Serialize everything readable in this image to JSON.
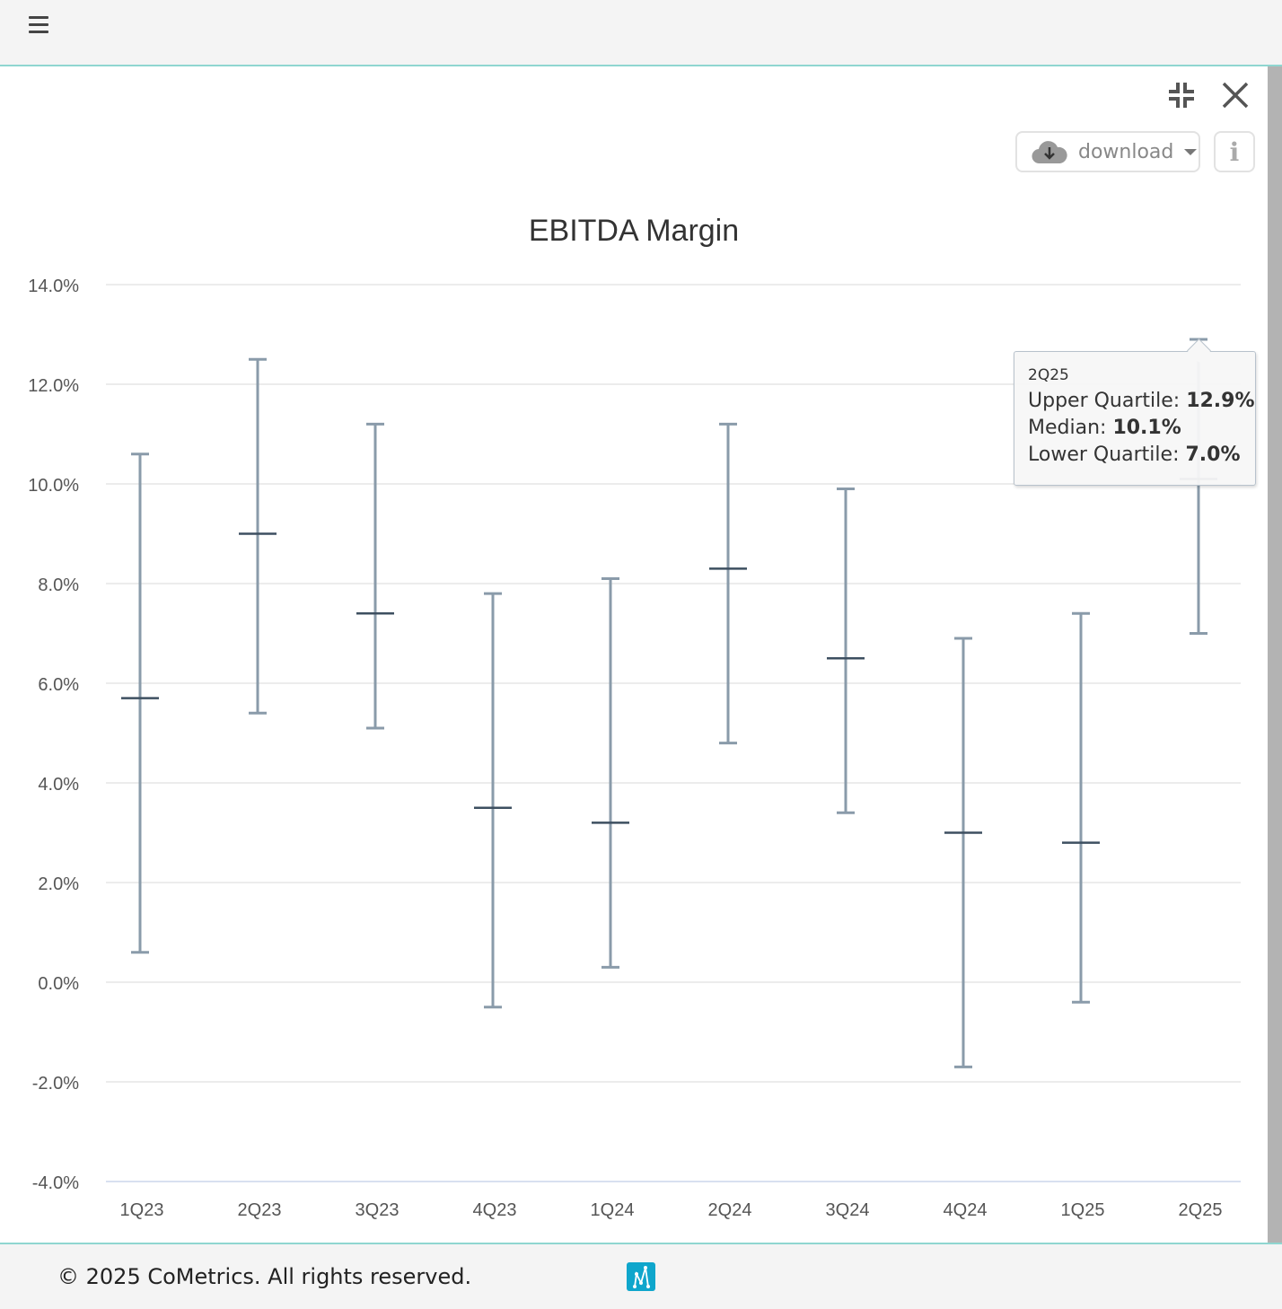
{
  "header": {
    "menu_icon": "hamburger-icon"
  },
  "toolbar": {
    "collapse_icon": "collapse-icon",
    "close_icon": "close-icon",
    "download_label": "download",
    "info_label": "i"
  },
  "chart_data": {
    "type": "boxplot-range",
    "title": "EBITDA Margin",
    "xlabel": "",
    "ylabel": "",
    "ylim": [
      -4,
      14
    ],
    "yticks": [
      14,
      12,
      10,
      8,
      6,
      4,
      2,
      0,
      -2,
      -4
    ],
    "ytick_labels": [
      "14.0%",
      "12.0%",
      "10.0%",
      "8.0%",
      "6.0%",
      "4.0%",
      "2.0%",
      "0.0%",
      "-2.0%",
      "-4.0%"
    ],
    "grid": true,
    "categories": [
      "1Q23",
      "2Q23",
      "3Q23",
      "4Q23",
      "1Q24",
      "2Q24",
      "3Q24",
      "4Q24",
      "1Q25",
      "2Q25"
    ],
    "series": [
      {
        "name": "Upper Quartile",
        "values": [
          10.6,
          12.5,
          11.2,
          7.8,
          8.1,
          11.2,
          9.9,
          6.9,
          7.4,
          12.9
        ]
      },
      {
        "name": "Median",
        "values": [
          5.7,
          9.0,
          7.4,
          3.5,
          3.2,
          8.3,
          6.5,
          3.0,
          2.8,
          10.1
        ]
      },
      {
        "name": "Lower Quartile",
        "values": [
          0.6,
          5.4,
          5.1,
          -0.5,
          0.3,
          4.8,
          3.4,
          -1.7,
          -0.4,
          7.0
        ]
      }
    ],
    "color": "#8a9baa",
    "median_color": "#3d4f60"
  },
  "tooltip": {
    "category": "2Q25",
    "upper_label": "Upper Quartile: ",
    "upper_value": "12.9%",
    "median_label": "Median: ",
    "median_value": "10.1%",
    "lower_label": "Lower Quartile: ",
    "lower_value": "7.0%"
  },
  "footer": {
    "copyright": "© 2025 CoMetrics. All rights reserved."
  }
}
